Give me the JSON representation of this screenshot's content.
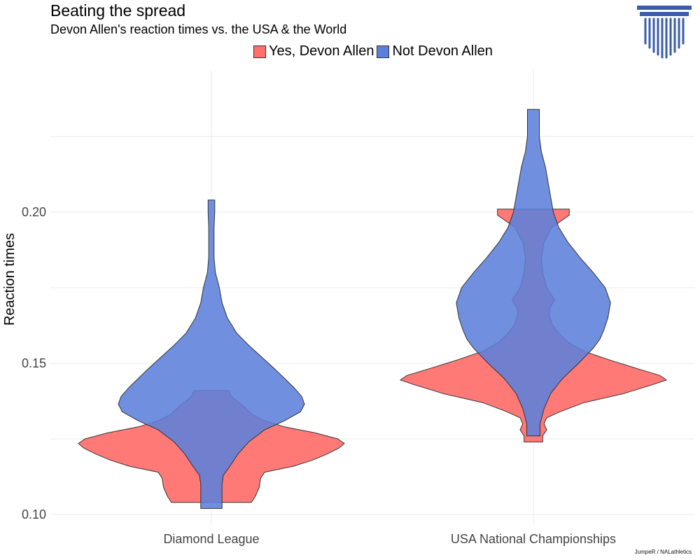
{
  "chart_data": {
    "type": "violin",
    "title": "Beating the spread",
    "subtitle": "Devon Allen's reaction times vs. the USA & the World",
    "xlabel": "",
    "ylabel": "Reaction times",
    "categories": [
      "Diamond League",
      "USA National Championships"
    ],
    "ylim": [
      0.097,
      0.247
    ],
    "yticks": [
      0.1,
      0.15,
      0.2
    ],
    "ytick_labels": [
      "0.10",
      "0.15",
      "0.20"
    ],
    "grid": true,
    "legend_position": "top",
    "series": [
      {
        "name": "Yes, Devon Allen",
        "color": "#FF6F6B",
        "violins": [
          {
            "category": "Diamond League",
            "min": 0.104,
            "max": 0.141,
            "profile": [
              [
                0.104,
                0.3
              ],
              [
                0.106,
                0.33
              ],
              [
                0.109,
                0.36
              ],
              [
                0.112,
                0.37
              ],
              [
                0.114,
                0.4
              ],
              [
                0.116,
                0.62
              ],
              [
                0.118,
                0.76
              ],
              [
                0.12,
                0.87
              ],
              [
                0.122,
                0.96
              ],
              [
                0.1235,
                1.0
              ],
              [
                0.125,
                0.95
              ],
              [
                0.127,
                0.78
              ],
              [
                0.129,
                0.55
              ],
              [
                0.131,
                0.4
              ],
              [
                0.133,
                0.31
              ],
              [
                0.135,
                0.26
              ],
              [
                0.137,
                0.21
              ],
              [
                0.139,
                0.15
              ],
              [
                0.141,
                0.13
              ]
            ]
          },
          {
            "category": "USA National Championships",
            "min": 0.124,
            "max": 0.201,
            "profile": [
              [
                0.124,
                0.07
              ],
              [
                0.126,
                0.07
              ],
              [
                0.128,
                0.1
              ],
              [
                0.13,
                0.08
              ],
              [
                0.132,
                0.1
              ],
              [
                0.134,
                0.2
              ],
              [
                0.137,
                0.38
              ],
              [
                0.14,
                0.68
              ],
              [
                0.143,
                0.9
              ],
              [
                0.1445,
                1.0
              ],
              [
                0.146,
                0.95
              ],
              [
                0.148,
                0.8
              ],
              [
                0.151,
                0.58
              ],
              [
                0.154,
                0.38
              ],
              [
                0.157,
                0.26
              ],
              [
                0.16,
                0.19
              ],
              [
                0.163,
                0.14
              ],
              [
                0.166,
                0.12
              ],
              [
                0.168,
                0.12
              ],
              [
                0.171,
                0.16
              ],
              [
                0.175,
                0.1
              ],
              [
                0.18,
                0.07
              ],
              [
                0.185,
                0.06
              ],
              [
                0.19,
                0.08
              ],
              [
                0.195,
                0.14
              ],
              [
                0.199,
                0.27
              ],
              [
                0.201,
                0.27
              ]
            ]
          }
        ]
      },
      {
        "name": "Not Devon Allen",
        "color": "#5C7FDB",
        "violins": [
          {
            "category": "Diamond League",
            "min": 0.102,
            "max": 0.204,
            "profile": [
              [
                0.102,
                0.08
              ],
              [
                0.104,
                0.08
              ],
              [
                0.107,
                0.08
              ],
              [
                0.11,
                0.08
              ],
              [
                0.113,
                0.09
              ],
              [
                0.116,
                0.14
              ],
              [
                0.12,
                0.2
              ],
              [
                0.124,
                0.28
              ],
              [
                0.128,
                0.4
              ],
              [
                0.131,
                0.55
              ],
              [
                0.134,
                0.67
              ],
              [
                0.1365,
                0.7
              ],
              [
                0.139,
                0.68
              ],
              [
                0.142,
                0.62
              ],
              [
                0.145,
                0.55
              ],
              [
                0.148,
                0.48
              ],
              [
                0.152,
                0.38
              ],
              [
                0.156,
                0.28
              ],
              [
                0.16,
                0.19
              ],
              [
                0.165,
                0.12
              ],
              [
                0.17,
                0.08
              ],
              [
                0.175,
                0.06
              ],
              [
                0.18,
                0.03
              ],
              [
                0.185,
                0.02
              ],
              [
                0.19,
                0.02
              ],
              [
                0.195,
                0.02
              ],
              [
                0.2,
                0.025
              ],
              [
                0.204,
                0.025
              ]
            ]
          },
          {
            "category": "USA National Championships",
            "min": 0.126,
            "max": 0.234,
            "profile": [
              [
                0.126,
                0.05
              ],
              [
                0.13,
                0.05
              ],
              [
                0.135,
                0.08
              ],
              [
                0.14,
                0.13
              ],
              [
                0.145,
                0.22
              ],
              [
                0.15,
                0.34
              ],
              [
                0.155,
                0.45
              ],
              [
                0.158,
                0.5
              ],
              [
                0.161,
                0.53
              ],
              [
                0.165,
                0.56
              ],
              [
                0.17,
                0.58
              ],
              [
                0.175,
                0.54
              ],
              [
                0.18,
                0.45
              ],
              [
                0.185,
                0.35
              ],
              [
                0.19,
                0.26
              ],
              [
                0.195,
                0.19
              ],
              [
                0.2,
                0.15
              ],
              [
                0.205,
                0.13
              ],
              [
                0.21,
                0.11
              ],
              [
                0.215,
                0.09
              ],
              [
                0.22,
                0.06
              ],
              [
                0.225,
                0.045
              ],
              [
                0.23,
                0.045
              ],
              [
                0.234,
                0.045
              ]
            ]
          }
        ]
      }
    ]
  },
  "logo": {
    "icon": "column-pillar-icon",
    "color": "#3A5DA8"
  },
  "credit": "JumpeR / NALathletics"
}
